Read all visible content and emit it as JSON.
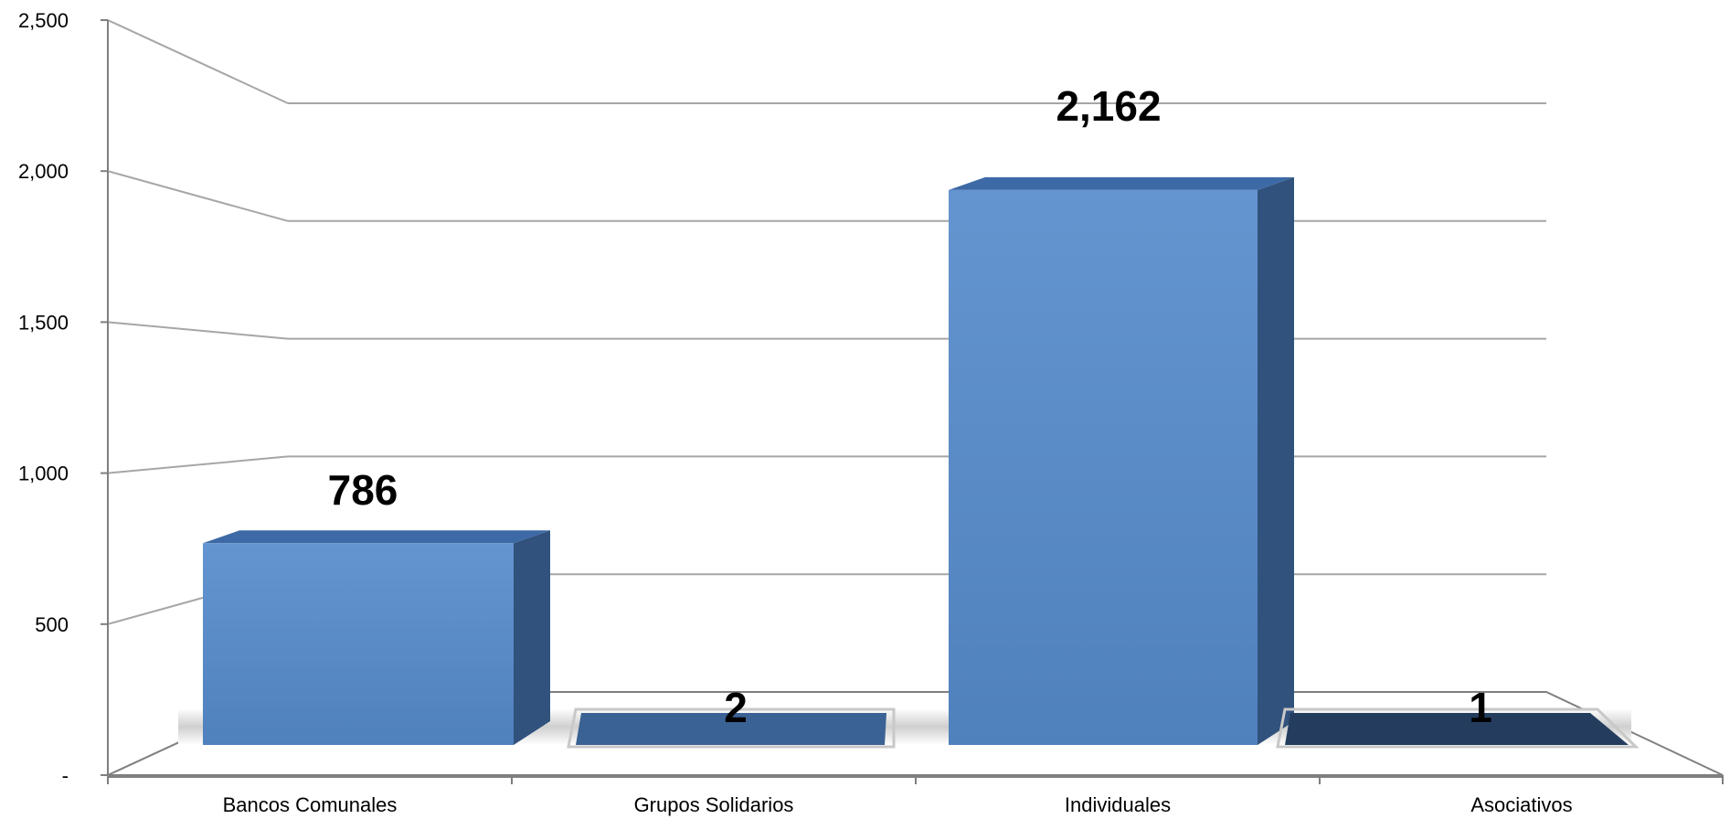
{
  "chart_data": {
    "type": "bar",
    "style": "3d-column",
    "categories": [
      "Bancos Comunales",
      "Grupos Solidarios",
      "Individuales",
      "Asociativos"
    ],
    "values": [
      786,
      2,
      2162,
      1
    ],
    "data_labels": [
      "786",
      "2",
      "2,162",
      "1"
    ],
    "y_tick_labels": [
      "-",
      "500",
      "1,000",
      "1,500",
      "2,000",
      "2,500"
    ],
    "y_ticks": [
      0,
      500,
      1000,
      1500,
      2000,
      2500
    ],
    "ylim": [
      0,
      2500
    ],
    "grid": true,
    "legend": "none",
    "colors": {
      "bar_front": "#4f81bd",
      "bar_side": "#30527c",
      "bar_top": "#3d6aa6",
      "flat_bar_2": "#3b6294",
      "flat_bar_1": "#243d5f",
      "grid": "#a6a6a6",
      "axis": "#7f7f7f",
      "floor_shadow": "#d9d9d9"
    }
  }
}
